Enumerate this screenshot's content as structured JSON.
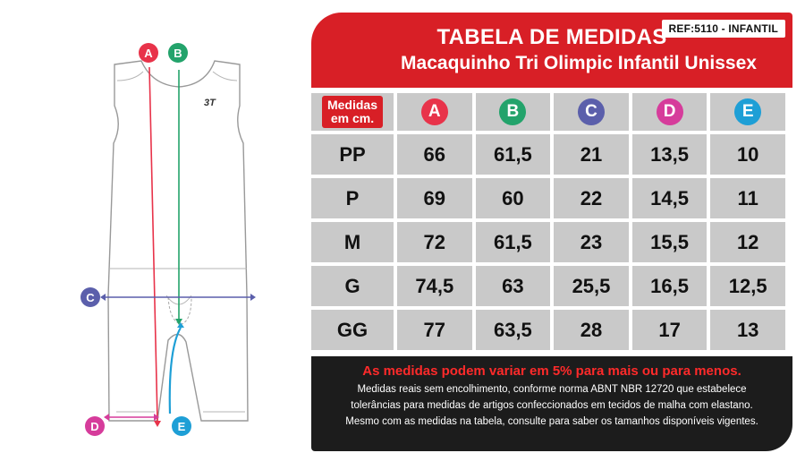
{
  "header": {
    "title": "TABELA DE MEDIDAS",
    "subtitle": "Macaquinho Tri Olimpic Infantil Unissex",
    "ref": "REF:5110 - INFANTIL"
  },
  "illustration": {
    "brand_logo_text": "3T",
    "markers": [
      {
        "letter": "A",
        "color": "#e8334a"
      },
      {
        "letter": "B",
        "color": "#23a36b"
      },
      {
        "letter": "C",
        "color": "#5b5fab"
      },
      {
        "letter": "D",
        "color": "#d63c9b"
      },
      {
        "letter": "E",
        "color": "#1e9fd6"
      }
    ]
  },
  "table": {
    "corner_label_line1": "Medidas",
    "corner_label_line2": "em cm.",
    "columns": [
      {
        "label": "A",
        "color": "#e8334a"
      },
      {
        "label": "B",
        "color": "#23a36b"
      },
      {
        "label": "C",
        "color": "#5b5fab"
      },
      {
        "label": "D",
        "color": "#d63c9b"
      },
      {
        "label": "E",
        "color": "#1e9fd6"
      }
    ],
    "rows": [
      {
        "size": "PP",
        "values": [
          "66",
          "61,5",
          "21",
          "13,5",
          "10"
        ]
      },
      {
        "size": "P",
        "values": [
          "69",
          "60",
          "22",
          "14,5",
          "11"
        ]
      },
      {
        "size": "M",
        "values": [
          "72",
          "61,5",
          "23",
          "15,5",
          "12"
        ]
      },
      {
        "size": "G",
        "values": [
          "74,5",
          "63",
          "25,5",
          "16,5",
          "12,5"
        ]
      },
      {
        "size": "GG",
        "values": [
          "77",
          "63,5",
          "28",
          "17",
          "13"
        ]
      }
    ]
  },
  "note": {
    "title": "As medidas podem variar em 5% para mais ou para menos.",
    "line1": "Medidas reais sem encolhimento, conforme norma ABNT NBR 12720 que estabelece",
    "line2": "tolerâncias para medidas de artigos confeccionados em tecidos de malha com elastano.",
    "line3": "Mesmo com as medidas na tabela, consulte para saber os tamanhos disponíveis vigentes."
  }
}
